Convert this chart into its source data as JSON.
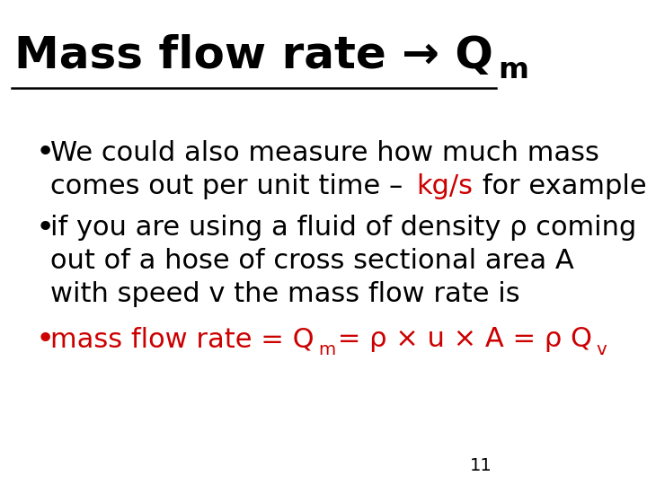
{
  "bg_color": "#ffffff",
  "title_text": "Mass flow rate → Q",
  "title_sub": "m",
  "slide_number": "11",
  "bullet1_line1": "We could also measure how much mass",
  "bullet1_line2_black1": "comes out per unit time – ",
  "bullet1_line2_red": "kg/s",
  "bullet1_line2_black2": " for example",
  "bullet2_line1": "if you are using a fluid of density ρ coming",
  "bullet2_line2": "out of a hose of cross sectional area A",
  "bullet2_line3": "with speed v the mass flow rate is",
  "bullet3_part1": "mass flow rate = Q",
  "bullet3_sub1": "m",
  "bullet3_part2": " = ρ × u × A = ρ Q",
  "bullet3_sub2": "v",
  "font_size_title": 36,
  "font_size_body": 22,
  "font_size_slide_num": 14,
  "black": "#000000",
  "red": "#cc0000"
}
